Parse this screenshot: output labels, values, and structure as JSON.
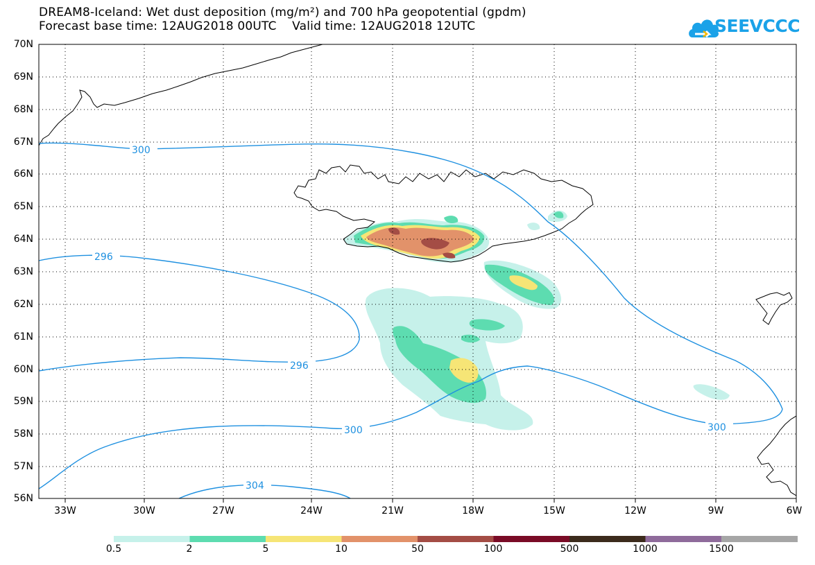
{
  "title": {
    "line1": "DREAM8-Iceland: Wet dust deposition (mg/m²) and 700 hPa geopotential (gpdm)",
    "line2": "Forecast base time: 12AUG2018 00UTC    Valid time: 12AUG2018 12UTC"
  },
  "logo": {
    "text": "SEEVCCC",
    "icon": "cloud-icon",
    "color": "#1aa2e8"
  },
  "map": {
    "lat_labels": [
      "70N",
      "69N",
      "68N",
      "67N",
      "66N",
      "65N",
      "64N",
      "63N",
      "62N",
      "61N",
      "60N",
      "59N",
      "58N",
      "57N",
      "56N"
    ],
    "lon_labels": [
      "33W",
      "30W",
      "27W",
      "24W",
      "21W",
      "18W",
      "15W",
      "12W",
      "9W",
      "6W"
    ],
    "contour_labels": [
      "300",
      "296",
      "296",
      "300",
      "300",
      "304"
    ],
    "contour_color": "#1e90e0"
  },
  "colorbar": {
    "labels": [
      "0.5",
      "2",
      "5",
      "10",
      "50",
      "100",
      "500",
      "1000",
      "1500"
    ],
    "colors": [
      "#c6f1ea",
      "#5ddcb0",
      "#f6e576",
      "#e2926a",
      "#a44d45",
      "#7a0b26",
      "#3c2b1c",
      "#8f6b9b",
      "#a6a6a6"
    ]
  }
}
